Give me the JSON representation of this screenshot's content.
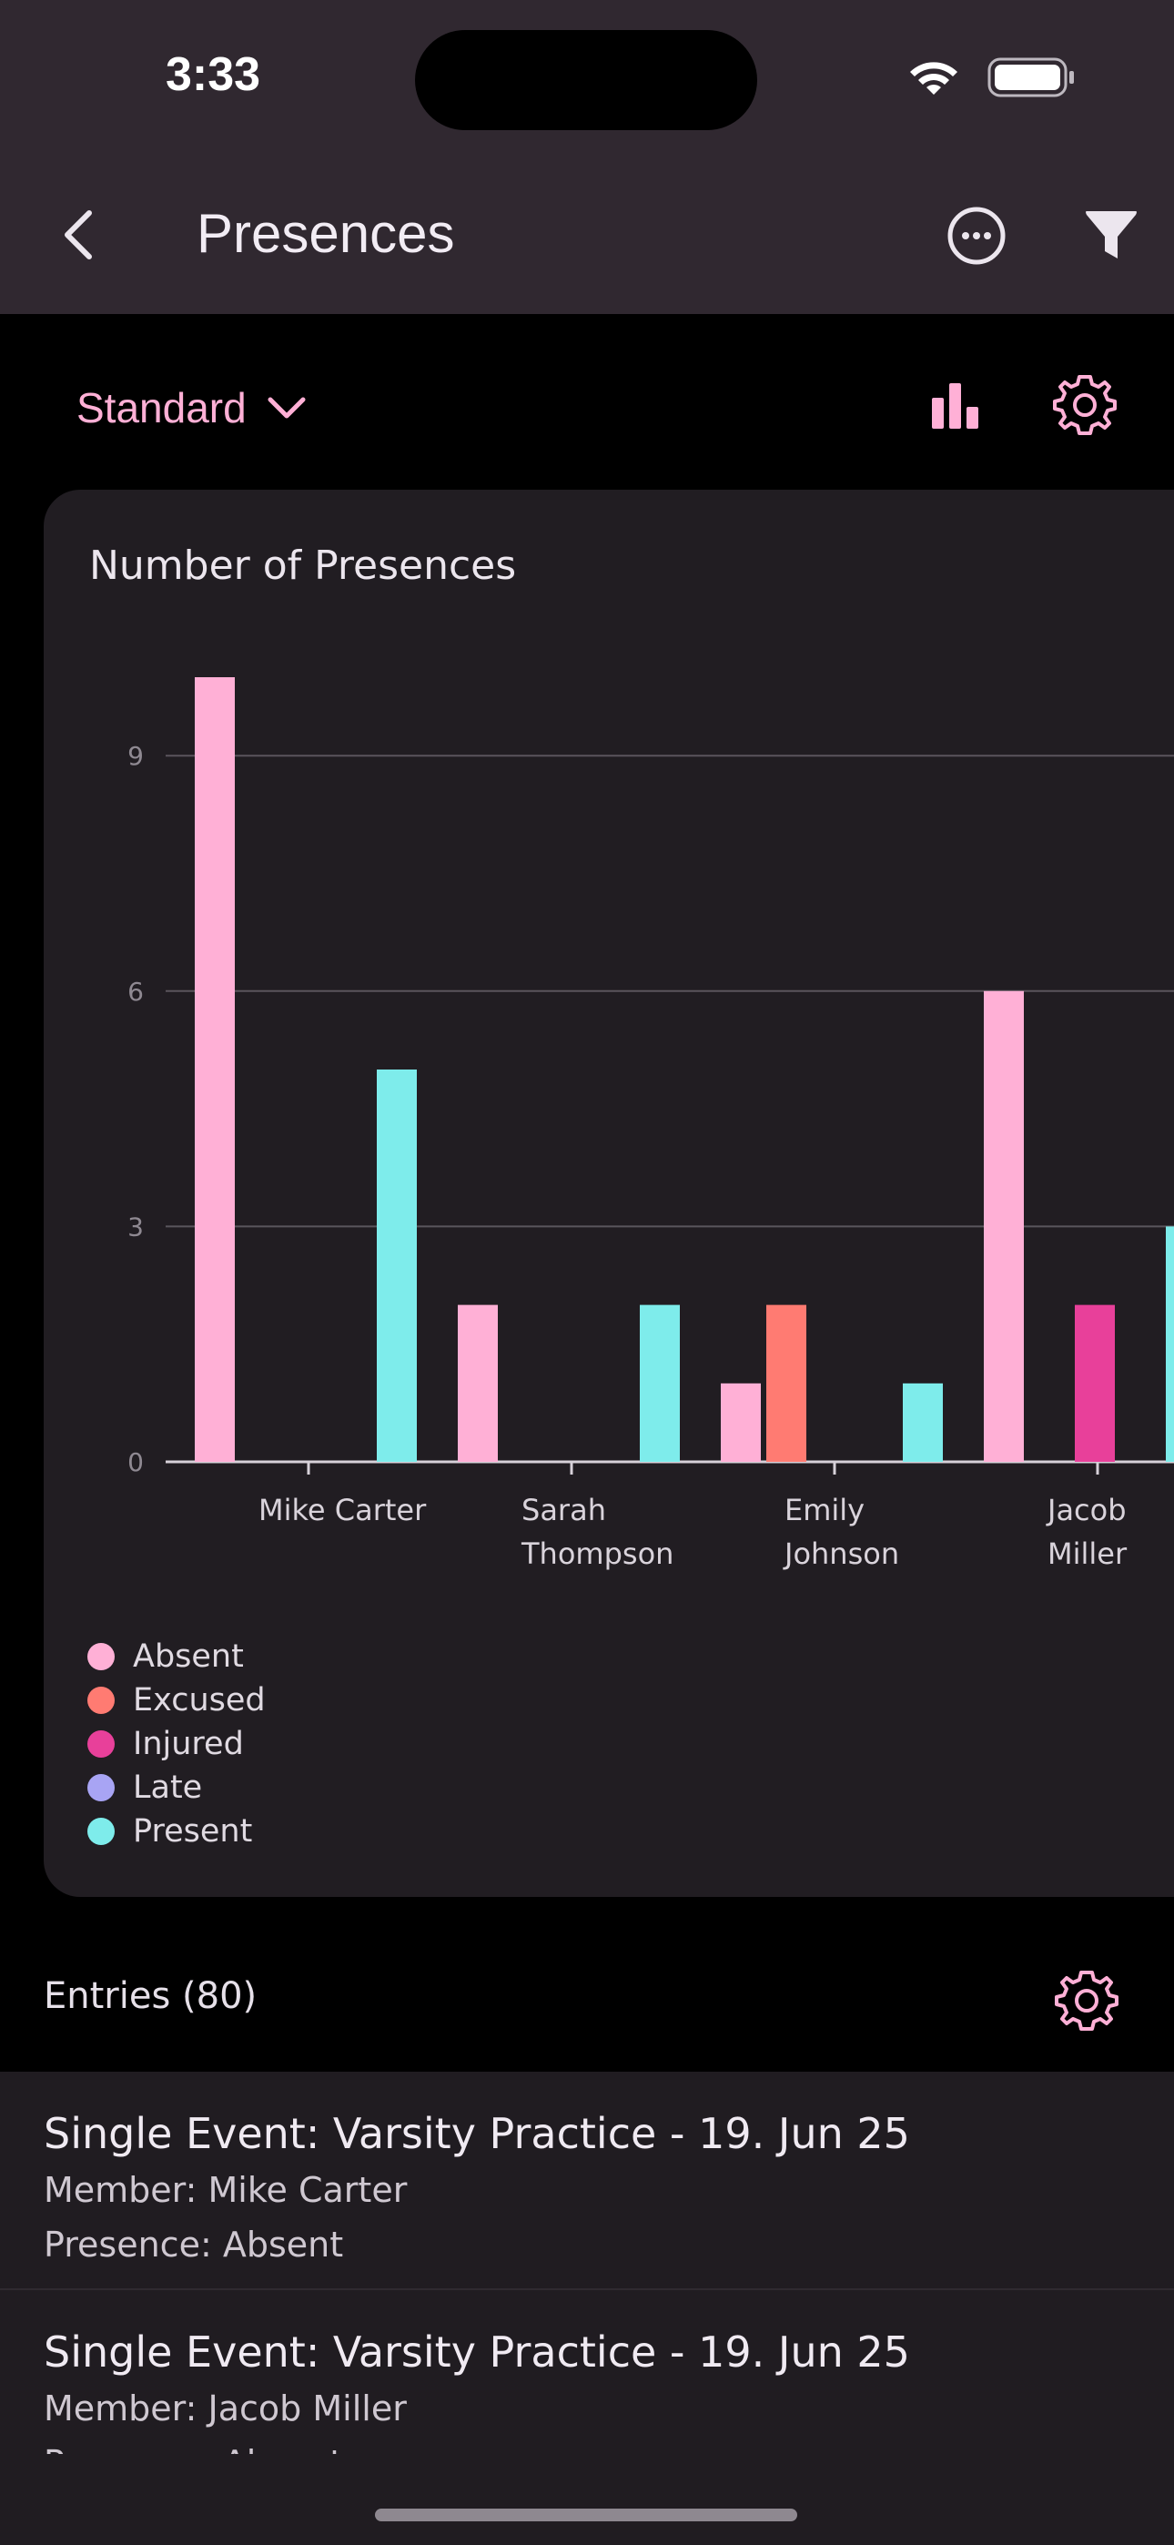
{
  "status_bar": {
    "time": "3:33"
  },
  "app_bar": {
    "title": "Presences"
  },
  "toolbar": {
    "view_label": "Standard"
  },
  "card": {
    "title": "Number of Presences"
  },
  "colors": {
    "Absent": "#ffb0d6",
    "Excused": "#ff7b72",
    "Injured": "#e8409a",
    "Late": "#a8a4f4",
    "Present": "#7eeceb"
  },
  "chart_data": {
    "type": "bar",
    "title": "Number of Presences",
    "categories": [
      [
        "Mike Carter"
      ],
      [
        "Sarah",
        "Thompson"
      ],
      [
        "Emily",
        "Johnson"
      ],
      [
        "Jacob",
        "Miller"
      ]
    ],
    "yticks": [
      "0",
      "3",
      "6",
      "9"
    ],
    "ylim": [
      0,
      10
    ],
    "grid": true,
    "legend_position": "bottom-left",
    "series": [
      {
        "name": "Absent",
        "values": [
          10,
          2,
          1,
          6
        ]
      },
      {
        "name": "Excused",
        "values": [
          0,
          0,
          2,
          0
        ]
      },
      {
        "name": "Injured",
        "values": [
          0,
          0,
          0,
          2
        ]
      },
      {
        "name": "Late",
        "values": [
          0,
          0,
          0,
          0
        ]
      },
      {
        "name": "Present",
        "values": [
          5,
          2,
          1,
          3
        ]
      }
    ]
  },
  "legend": [
    "Absent",
    "Excused",
    "Injured",
    "Late",
    "Present"
  ],
  "entries": {
    "title": "Entries (80)",
    "items": [
      {
        "title": "Single Event: Varsity Practice - 19. Jun 25",
        "member": "Member: Mike Carter",
        "presence": "Presence: Absent"
      },
      {
        "title": "Single Event: Varsity Practice - 19. Jun 25",
        "member": "Member: Jacob Miller",
        "presence": "Presence: Absent"
      }
    ]
  }
}
